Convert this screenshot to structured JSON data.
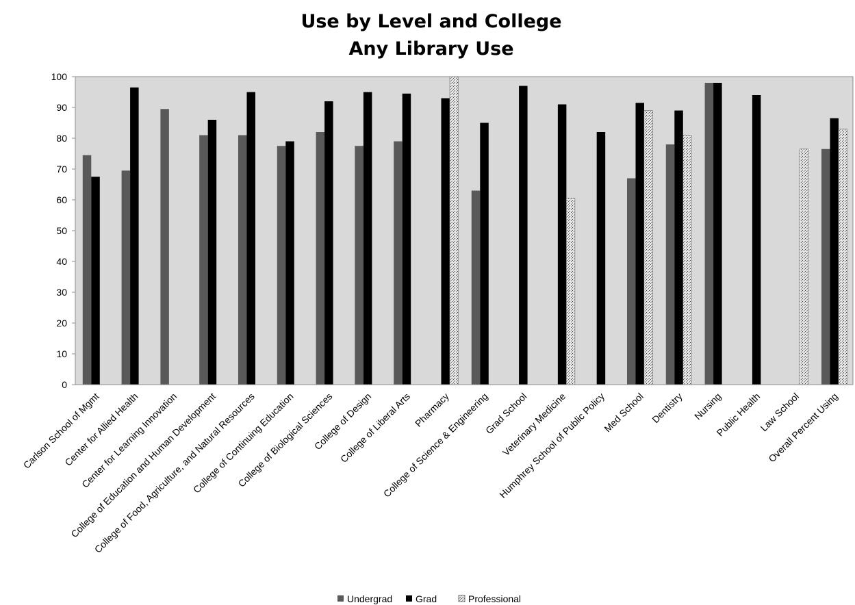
{
  "chart_data": {
    "type": "bar",
    "title": "Use by Level and College",
    "subtitle": "Any Library Use",
    "ylim": [
      0,
      100
    ],
    "yticks": [
      0,
      10,
      20,
      30,
      40,
      50,
      60,
      70,
      80,
      90,
      100
    ],
    "grid": false,
    "legend_position": "bottom",
    "categories": [
      "Carlson School of Mgmt",
      "Center for Allied Health",
      "Center for Learning Innovation",
      "College of Education and Human Development",
      "College of Food, Agriculture, and Natural Resources",
      "College of Continuing Education",
      "College of Biological Sciences",
      "College of Design",
      "College of Liberal Arts",
      "Pharmacy",
      "College of Science & Engineering",
      "Grad School",
      "Veterinary Medicine",
      "Humphrey School of Public Policy",
      "Med School",
      "Dentistry",
      "Nursing",
      "Public Health",
      "Law School",
      "Overall Percent Using"
    ],
    "series": [
      {
        "name": "Undergrad",
        "color": "#595959",
        "values": [
          74.5,
          69.5,
          89.5,
          81,
          81,
          77.5,
          82,
          77.5,
          79,
          null,
          63,
          null,
          null,
          null,
          67,
          78,
          98,
          null,
          null,
          76.5
        ]
      },
      {
        "name": "Grad",
        "color": "#000000",
        "values": [
          67.5,
          96.5,
          null,
          86,
          95,
          79,
          92,
          95,
          94.5,
          93,
          85,
          97,
          91,
          82,
          91.5,
          89,
          98,
          94,
          null,
          86.5
        ]
      },
      {
        "name": "Professional",
        "color": "#c8c8c8",
        "values": [
          null,
          null,
          null,
          null,
          null,
          null,
          null,
          null,
          null,
          100,
          null,
          null,
          60.5,
          null,
          89,
          81,
          null,
          null,
          76.5,
          83
        ]
      }
    ]
  }
}
